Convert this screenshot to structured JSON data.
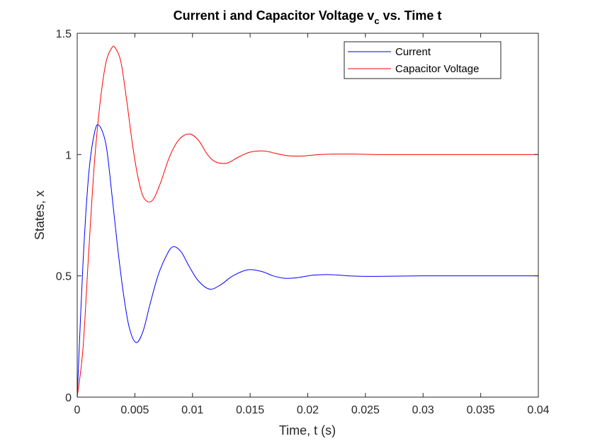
{
  "chart_data": {
    "type": "line",
    "title": {
      "main": "Current i and Capacitor Voltage v",
      "subscript": "c",
      "tail": " vs. Time t"
    },
    "xlabel": "Time, t (s)",
    "ylabel": "States, x",
    "xlim": [
      0,
      0.04
    ],
    "ylim": [
      0,
      1.5
    ],
    "xticks": [
      0,
      0.005,
      0.01,
      0.015,
      0.02,
      0.025,
      0.03,
      0.035,
      0.04
    ],
    "xtick_labels": [
      "0",
      "0.005",
      "0.01",
      "0.015",
      "0.02",
      "0.025",
      "0.03",
      "0.035",
      "0.04"
    ],
    "yticks": [
      0,
      0.5,
      1,
      1.5
    ],
    "ytick_labels": [
      "0",
      "0.5",
      "1",
      "1.5"
    ],
    "grid": false,
    "legend_position": "top-right",
    "series": [
      {
        "name": "Current",
        "color": "#0000ff",
        "x": [
          0,
          0.0005,
          0.001,
          0.0015,
          0.0019,
          0.0025,
          0.003,
          0.0035,
          0.004,
          0.0045,
          0.0051,
          0.0057,
          0.0063,
          0.007,
          0.0077,
          0.0083,
          0.009,
          0.0097,
          0.0105,
          0.0115,
          0.0125,
          0.0135,
          0.0148,
          0.016,
          0.017,
          0.018,
          0.019,
          0.0205,
          0.022,
          0.024,
          0.026,
          0.03,
          0.035,
          0.04
        ],
        "y": [
          0,
          0.55,
          0.92,
          1.09,
          1.12,
          1.04,
          0.84,
          0.62,
          0.43,
          0.29,
          0.225,
          0.27,
          0.38,
          0.5,
          0.58,
          0.62,
          0.6,
          0.54,
          0.48,
          0.445,
          0.465,
          0.5,
          0.525,
          0.518,
          0.5,
          0.49,
          0.492,
          0.503,
          0.505,
          0.499,
          0.498,
          0.5,
          0.5,
          0.5
        ]
      },
      {
        "name": "Capacitor Voltage",
        "color": "#ff0000",
        "x": [
          0,
          0.0005,
          0.001,
          0.0015,
          0.002,
          0.0025,
          0.003,
          0.0033,
          0.0038,
          0.0043,
          0.0048,
          0.0053,
          0.0058,
          0.0065,
          0.0072,
          0.008,
          0.0088,
          0.0097,
          0.0105,
          0.0113,
          0.012,
          0.013,
          0.014,
          0.015,
          0.0162,
          0.0172,
          0.0183,
          0.0195,
          0.021,
          0.0225,
          0.024,
          0.026,
          0.03,
          0.035,
          0.04
        ],
        "y": [
          0,
          0.2,
          0.6,
          0.97,
          1.22,
          1.38,
          1.44,
          1.44,
          1.38,
          1.22,
          1.04,
          0.9,
          0.82,
          0.81,
          0.88,
          0.99,
          1.06,
          1.085,
          1.06,
          1.0,
          0.97,
          0.965,
          0.99,
          1.01,
          1.015,
          1.005,
          0.995,
          0.994,
          1.0,
          1.002,
          1.002,
          1.0,
          1.0,
          1.0,
          1.0
        ]
      }
    ]
  }
}
